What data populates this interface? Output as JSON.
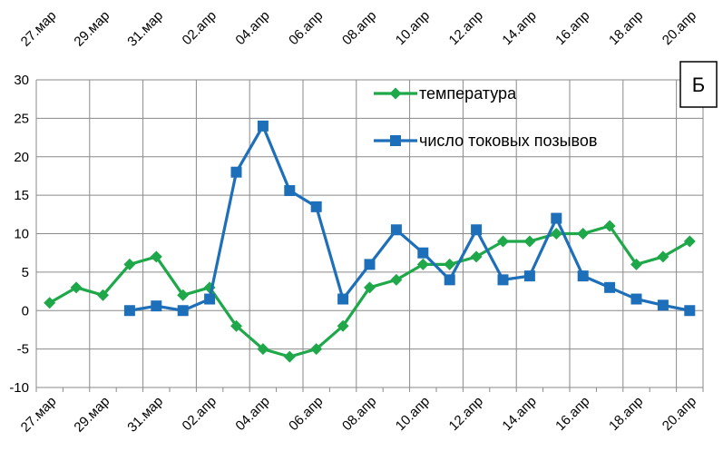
{
  "chart_data": {
    "type": "line",
    "panel_label": "Б",
    "x": [
      "27.мар",
      "28.мар",
      "29.мар",
      "30.мар",
      "31.мар",
      "01.апр",
      "02.апр",
      "03.апр",
      "04.апр",
      "05.апр",
      "06.апр",
      "07.апр",
      "08.апр",
      "09.апр",
      "10.апр",
      "11.апр",
      "12.апр",
      "13.апр",
      "14.апр",
      "15.апр",
      "16.апр",
      "17.апр",
      "18.апр",
      "19.апр",
      "20.апр"
    ],
    "x_tick_labels": [
      "27.мар",
      "29.мар",
      "31.мар",
      "02.апр",
      "04.апр",
      "06.апр",
      "08.апр",
      "10.апр",
      "12.апр",
      "14.апр",
      "16.апр",
      "18.апр",
      "20.апр"
    ],
    "ylim": [
      -10,
      30
    ],
    "y_ticks": [
      -10,
      -5,
      0,
      5,
      10,
      15,
      20,
      25,
      30
    ],
    "grid": true,
    "legend_position": "top-right",
    "series": [
      {
        "name": "температура",
        "color": "#1ea84a",
        "marker": "diamond",
        "values": [
          1,
          3,
          2,
          6,
          7,
          2,
          3,
          -2,
          -5,
          -6,
          -5,
          -2,
          3,
          4,
          6,
          6,
          7,
          9,
          9,
          10,
          10,
          11,
          6,
          7,
          9
        ]
      },
      {
        "name": "число токовых позывов",
        "color": "#1e6fba",
        "marker": "square",
        "values": [
          null,
          null,
          null,
          0,
          0.6,
          0,
          1.5,
          18,
          24,
          15.6,
          13.5,
          1.5,
          6,
          10.5,
          7.5,
          4,
          10.5,
          4,
          4.5,
          12,
          4.5,
          3,
          1.5,
          0.7,
          0
        ]
      }
    ]
  }
}
